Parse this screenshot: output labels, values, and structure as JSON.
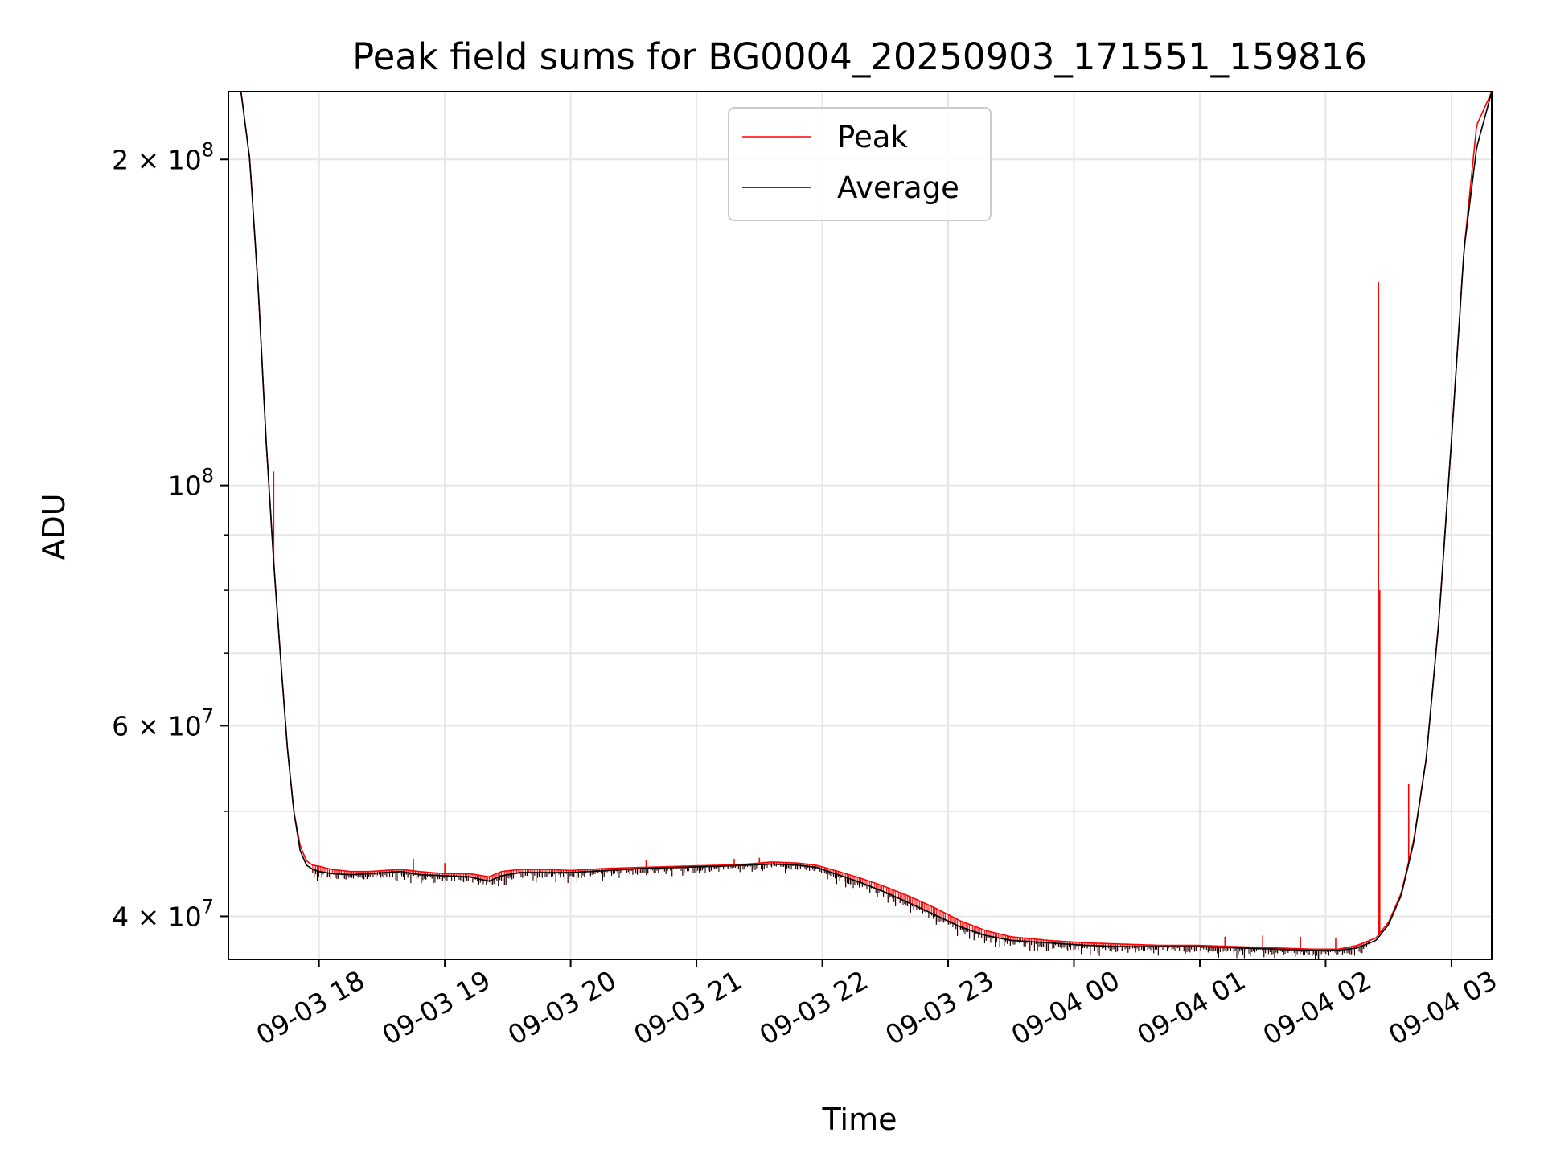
{
  "chart_data": {
    "type": "line",
    "title": "Peak field sums for BG0004_20250903_171551_159816",
    "xlabel": "Time",
    "ylabel": "ADU",
    "yscale": "log",
    "xlim_hours": [
      -0.72,
      9.32
    ],
    "ylim": [
      36500000,
      231000000
    ],
    "grid": true,
    "legend_location": "top-center",
    "x_units": "hours since 09-03 18:00",
    "x_ticks": [
      {
        "value": 0,
        "label": "09-03 18"
      },
      {
        "value": 1,
        "label": "09-03 19"
      },
      {
        "value": 2,
        "label": "09-03 20"
      },
      {
        "value": 3,
        "label": "09-03 21"
      },
      {
        "value": 4,
        "label": "09-03 22"
      },
      {
        "value": 5,
        "label": "09-03 23"
      },
      {
        "value": 6,
        "label": "09-04 00"
      },
      {
        "value": 7,
        "label": "09-04 01"
      },
      {
        "value": 8,
        "label": "09-04 02"
      },
      {
        "value": 9,
        "label": "09-04 03"
      }
    ],
    "y_major_ticks": [
      {
        "value": 40000000,
        "mantissa": "4",
        "exponent": "7"
      },
      {
        "value": 60000000,
        "mantissa": "6",
        "exponent": "7"
      },
      {
        "value": 100000000,
        "mantissa": "",
        "exponent": "8"
      },
      {
        "value": 200000000,
        "mantissa": "2",
        "exponent": "8"
      }
    ],
    "y_minor_ticks": [
      50000000,
      70000000,
      80000000,
      90000000
    ],
    "tick_base": "10",
    "tick_times": "×",
    "series": [
      {
        "name": "Peak",
        "color": "#ff0000",
        "x": [
          -0.72,
          -0.62,
          -0.55,
          -0.48,
          -0.42,
          -0.36,
          -0.3,
          -0.25,
          -0.2,
          -0.15,
          -0.1,
          -0.05,
          0.0,
          0.1,
          0.25,
          0.4,
          0.65,
          0.8,
          1.0,
          1.2,
          1.35,
          1.45,
          1.6,
          1.8,
          2.0,
          2.3,
          2.6,
          2.9,
          3.2,
          3.4,
          3.6,
          3.8,
          3.95,
          4.1,
          4.3,
          4.5,
          4.7,
          4.9,
          5.1,
          5.3,
          5.5,
          5.8,
          6.1,
          6.4,
          6.7,
          7.0,
          7.3,
          7.6,
          7.9,
          8.1,
          8.25,
          8.4,
          8.5,
          8.6,
          8.7,
          8.8,
          8.9,
          9.0,
          9.1,
          9.2,
          9.32
        ],
        "values": [
          231000000,
          231000000,
          200000000,
          150000000,
          110000000,
          85000000,
          68000000,
          57000000,
          50000000,
          46500000,
          45000000,
          44600000,
          44500000,
          44200000,
          44000000,
          44000000,
          44200000,
          44000000,
          43800000,
          43800000,
          43500000,
          44000000,
          44200000,
          44200000,
          44100000,
          44300000,
          44400000,
          44500000,
          44600000,
          44700000,
          44900000,
          44800000,
          44600000,
          44100000,
          43400000,
          42600000,
          41700000,
          40700000,
          39600000,
          38800000,
          38300000,
          38000000,
          37800000,
          37700000,
          37600000,
          37600000,
          37500000,
          37400000,
          37300000,
          37300000,
          37600000,
          38200000,
          39500000,
          42000000,
          47000000,
          56000000,
          75000000,
          110000000,
          165000000,
          215000000,
          231000000
        ],
        "spikes": [
          {
            "x": -0.36,
            "value": 103000000
          },
          {
            "x": 0.75,
            "value": 45200000
          },
          {
            "x": 1.0,
            "value": 44800000
          },
          {
            "x": 2.6,
            "value": 45100000
          },
          {
            "x": 3.3,
            "value": 45200000
          },
          {
            "x": 3.5,
            "value": 45300000
          },
          {
            "x": 7.2,
            "value": 38300000
          },
          {
            "x": 7.5,
            "value": 38400000
          },
          {
            "x": 7.8,
            "value": 38300000
          },
          {
            "x": 8.08,
            "value": 38200000
          },
          {
            "x": 8.42,
            "value": 154000000
          },
          {
            "x": 8.43,
            "value": 80000000
          },
          {
            "x": 8.66,
            "value": 53000000
          }
        ]
      },
      {
        "name": "Average",
        "color": "#000000",
        "x": [
          -0.72,
          -0.62,
          -0.55,
          -0.48,
          -0.42,
          -0.36,
          -0.3,
          -0.25,
          -0.2,
          -0.15,
          -0.1,
          -0.05,
          0.0,
          0.1,
          0.25,
          0.4,
          0.65,
          0.8,
          1.0,
          1.2,
          1.35,
          1.45,
          1.6,
          1.8,
          2.0,
          2.3,
          2.6,
          2.9,
          3.2,
          3.4,
          3.6,
          3.8,
          3.95,
          4.1,
          4.3,
          4.5,
          4.7,
          4.9,
          5.1,
          5.3,
          5.5,
          5.8,
          6.1,
          6.4,
          6.7,
          7.0,
          7.3,
          7.6,
          7.9,
          8.1,
          8.25,
          8.4,
          8.5,
          8.6,
          8.7,
          8.8,
          8.9,
          9.0,
          9.1,
          9.2,
          9.32
        ],
        "values": [
          231000000,
          231000000,
          200000000,
          150000000,
          110000000,
          85000000,
          68000000,
          57000000,
          50000000,
          46000000,
          44600000,
          44200000,
          44000000,
          43800000,
          43700000,
          43800000,
          44000000,
          43700000,
          43600000,
          43500000,
          43100000,
          43600000,
          43900000,
          43900000,
          43900000,
          44100000,
          44300000,
          44400000,
          44500000,
          44600000,
          44700000,
          44600000,
          44400000,
          43800000,
          43000000,
          42100000,
          41100000,
          40100000,
          39100000,
          38400000,
          38000000,
          37800000,
          37600000,
          37500000,
          37500000,
          37500000,
          37400000,
          37300000,
          37200000,
          37200000,
          37400000,
          38000000,
          39300000,
          41800000,
          46800000,
          56000000,
          75000000,
          110000000,
          165000000,
          205000000,
          231000000
        ]
      }
    ]
  }
}
